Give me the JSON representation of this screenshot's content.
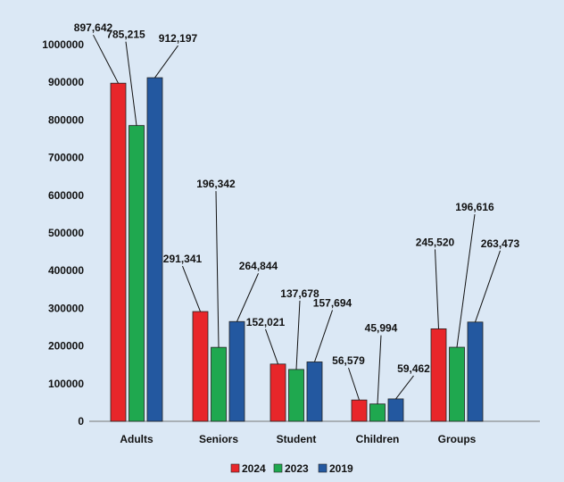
{
  "chart_data": {
    "type": "bar",
    "title": "",
    "xlabel": "",
    "ylabel": "",
    "ylim": [
      0,
      1000000
    ],
    "yticks": [
      0,
      100000,
      200000,
      300000,
      400000,
      500000,
      600000,
      700000,
      800000,
      900000,
      1000000
    ],
    "ytick_labels": [
      "0",
      "100000",
      "200000",
      "300000",
      "400000",
      "500000",
      "600000",
      "700000",
      "800000",
      "900000",
      "1000000"
    ],
    "categories": [
      "Adults",
      "Seniors",
      "Student",
      "Children",
      "Groups"
    ],
    "series": [
      {
        "name": "2024",
        "color": "#e8262a",
        "values": [
          897642,
          291341,
          152021,
          56579,
          245520
        ],
        "labels": [
          "897,642",
          "291,341",
          "152,021",
          "56,579",
          "245,520"
        ]
      },
      {
        "name": "2023",
        "color": "#1fa84f",
        "values": [
          785215,
          196342,
          137678,
          45994,
          196616
        ],
        "labels": [
          "785,215",
          "196,342",
          "137,678",
          "45,994",
          "196,616"
        ]
      },
      {
        "name": "2019",
        "color": "#2358a0",
        "values": [
          912197,
          264844,
          157694,
          59462,
          263473
        ],
        "labels": [
          "912,197",
          "264,844",
          "157,694",
          "59,462",
          "263,473"
        ]
      }
    ],
    "legend_position": "bottom",
    "grid": false
  }
}
